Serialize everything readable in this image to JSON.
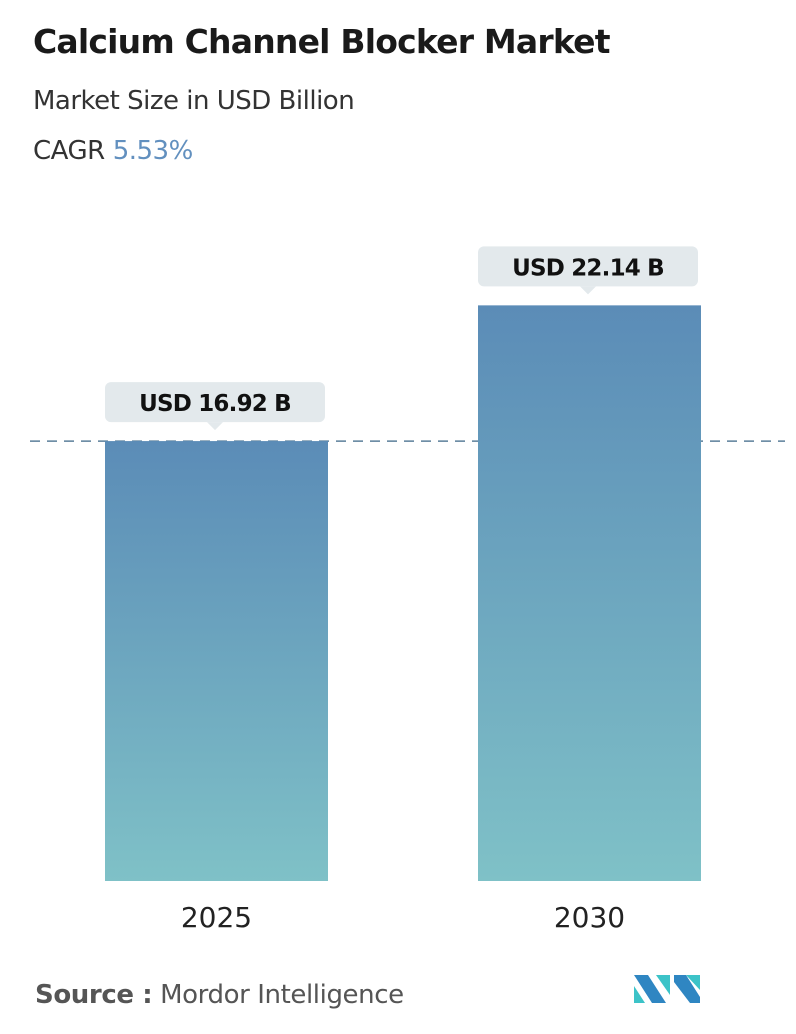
{
  "title": "Calcium Channel Blocker Market",
  "subtitle": "Market Size in USD Billion",
  "cagr_label": "CAGR",
  "cagr_value": "5.53%",
  "source_label": "Source :",
  "source_value": "Mordor Intelligence",
  "logo_text": "Mordor Intelligence",
  "colors": {
    "bar_top": "#5b8cb7",
    "bar_bottom": "#7fc1c7",
    "accent": "#6290bf",
    "label_bg": "#e3e9ec",
    "dash": "#5b7f9a"
  },
  "chart_data": {
    "type": "bar",
    "categories": [
      "2025",
      "2030"
    ],
    "values": [
      16.92,
      22.14
    ],
    "data_labels": [
      "USD 16.92 B",
      "USD 22.14 B"
    ],
    "title": "Calcium Channel Blocker Market",
    "ylabel": "Market Size in USD Billion",
    "reference_line": 16.92,
    "grid": false
  }
}
